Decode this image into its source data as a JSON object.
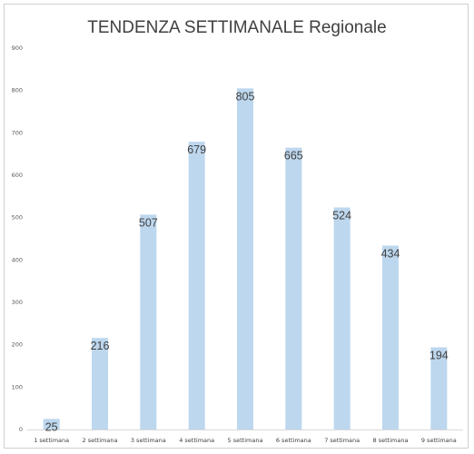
{
  "chart_data": {
    "type": "bar",
    "title": "TENDENZA SETTIMANALE Regionale",
    "categories": [
      "1 settimana",
      "2 settimana",
      "3 settimana",
      "4 settimana",
      "5 settimana",
      "6 settimana",
      "7 settimana",
      "8 settimana",
      "9 settimana"
    ],
    "values": [
      25,
      216,
      507,
      679,
      805,
      665,
      524,
      434,
      194
    ],
    "data_labels": [
      "25",
      "216",
      "507",
      "679",
      "805",
      "665",
      "524",
      "434",
      "194"
    ],
    "ylim": [
      0,
      900
    ],
    "yticks": [
      0,
      100,
      200,
      300,
      400,
      500,
      600,
      700,
      800,
      900
    ],
    "grid": false,
    "legend": "none",
    "bar_color": "#bdd7ee"
  }
}
